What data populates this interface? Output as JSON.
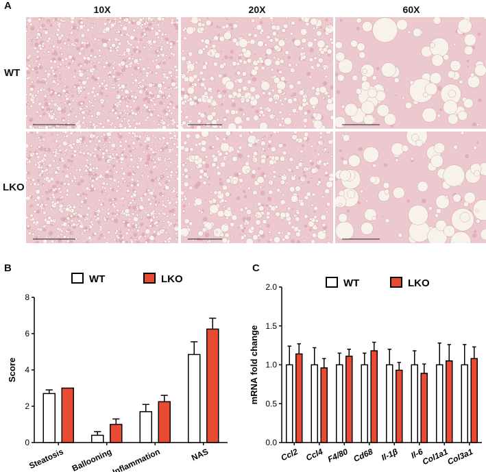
{
  "figure": {
    "panel_labels": [
      "A",
      "B",
      "C"
    ],
    "magnifications": [
      "10X",
      "20X",
      "60X"
    ],
    "row_labels": [
      "WT",
      "LKO"
    ]
  },
  "colors": {
    "wt_fill": "#ffffff",
    "lko_fill": "#e84a32",
    "stroke": "#000000",
    "tissue_bg": "#ecc9cf",
    "tissue_dark": "#d7a0ae",
    "droplet": "#f8f3ea"
  },
  "chart_data": [
    {
      "type": "bar",
      "panel": "B",
      "ylabel": "Score",
      "ylim": [
        0,
        8
      ],
      "yticks": [
        "0",
        "2",
        "4",
        "6",
        "8"
      ],
      "categories": [
        "Steatosis",
        "Ballooning",
        "Inflammation",
        "NAS"
      ],
      "series": [
        {
          "name": "WT",
          "values": [
            2.7,
            0.4,
            1.7,
            4.85
          ],
          "errors": [
            0.2,
            0.2,
            0.4,
            0.7
          ]
        },
        {
          "name": "LKO",
          "values": [
            3.0,
            1.0,
            2.25,
            6.25
          ],
          "errors": [
            0.0,
            0.3,
            0.35,
            0.6
          ]
        }
      ],
      "legend": "top"
    },
    {
      "type": "bar",
      "panel": "C",
      "ylabel": "mRNA fold change",
      "ylim": [
        0,
        2.0
      ],
      "yticks": [
        "0.0",
        "0.5",
        "1.0",
        "1.5",
        "2.0"
      ],
      "categories": [
        "Ccl2",
        "Ccl4",
        "F4/80",
        "Cd68",
        "Il-1β",
        "Il-6",
        "Col1a1",
        "Col3a1"
      ],
      "series": [
        {
          "name": "WT",
          "values": [
            1.0,
            1.0,
            1.0,
            1.0,
            1.0,
            1.0,
            1.0,
            1.0
          ],
          "errors": [
            0.24,
            0.22,
            0.15,
            0.15,
            0.2,
            0.18,
            0.28,
            0.26
          ]
        },
        {
          "name": "LKO",
          "values": [
            1.14,
            0.96,
            1.11,
            1.18,
            0.93,
            0.89,
            1.05,
            1.08
          ],
          "errors": [
            0.13,
            0.12,
            0.09,
            0.11,
            0.1,
            0.12,
            0.21,
            0.15
          ]
        }
      ],
      "legend": "top"
    }
  ]
}
